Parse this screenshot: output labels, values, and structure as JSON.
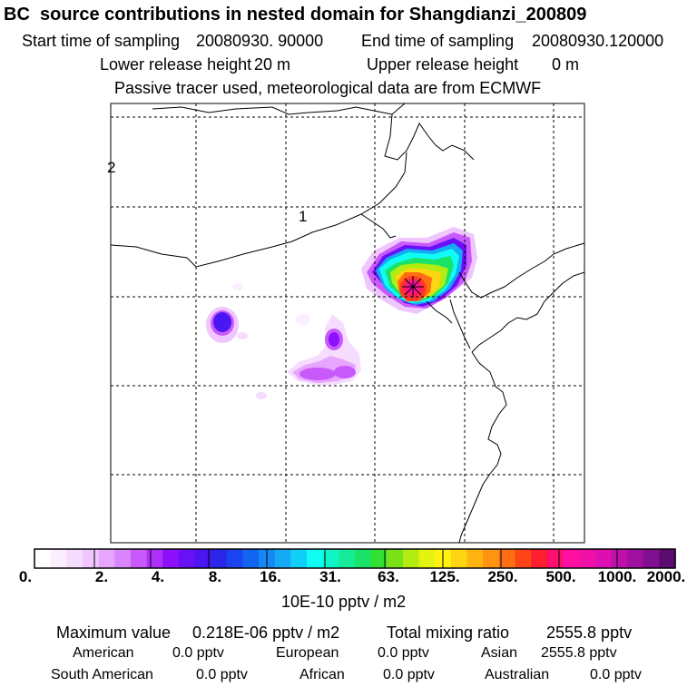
{
  "header": {
    "title": "BC  source contributions in nested domain for Shangdianzi_200809",
    "start_label": "Start time of sampling",
    "start_value": "20080930. 90000",
    "end_label": "End time of sampling",
    "end_value": "20080930.120000",
    "lower_label": "Lower release height",
    "lower_value": "20 m",
    "upper_label": "Upper release height",
    "upper_value": "0 m",
    "note": "Passive tracer used, meteorological data are from ECMWF"
  },
  "map": {
    "labels": [
      "2",
      "1"
    ],
    "receptor_icon": "star-marker-icon"
  },
  "colorbar": {
    "ticks": [
      "0.",
      "2.",
      "4.",
      "8.",
      "16.",
      "31.",
      "63.",
      "125.",
      "250.",
      "500.",
      "1000.",
      "2000."
    ],
    "unit": "10E-10 pptv / m2",
    "colors": [
      "#ffffff",
      "#fbeefe",
      "#f6dcfe",
      "#f0c6fe",
      "#e7a6fd",
      "#d985fd",
      "#c85afc",
      "#b030fb",
      "#8c10fb",
      "#6a10f8",
      "#4a16f2",
      "#2c26ea",
      "#1a44ef",
      "#1464f2",
      "#1488f4",
      "#14aaf6",
      "#10d0f8",
      "#10fcf4",
      "#10f4c8",
      "#14ec98",
      "#1ae468",
      "#34e034",
      "#7ae018",
      "#b2ec10",
      "#e4f410",
      "#fff210",
      "#ffd410",
      "#ffb410",
      "#ff9410",
      "#ff6e12",
      "#ff4418",
      "#ff1e30",
      "#ff1070",
      "#ff10a0",
      "#f010a8",
      "#dc10b0",
      "#c010ac",
      "#a010a0",
      "#801090",
      "#5c0c70"
    ]
  },
  "footer": {
    "max_label": "Maximum value",
    "max_value": "0.218E-06 pptv / m2",
    "total_label": "Total mixing ratio",
    "total_value": "2555.8 pptv",
    "american_label": "American",
    "american_value": "0.0 pptv",
    "european_label": "European",
    "european_value": "0.0 pptv",
    "asian_label": "Asian",
    "asian_value": "2555.8 pptv",
    "southamerican_label": "South American",
    "southamerican_value": "0.0 pptv",
    "african_label": "African",
    "african_value": "0.0 pptv",
    "australian_label": "Australian",
    "australian_value": "0.0 pptv"
  }
}
